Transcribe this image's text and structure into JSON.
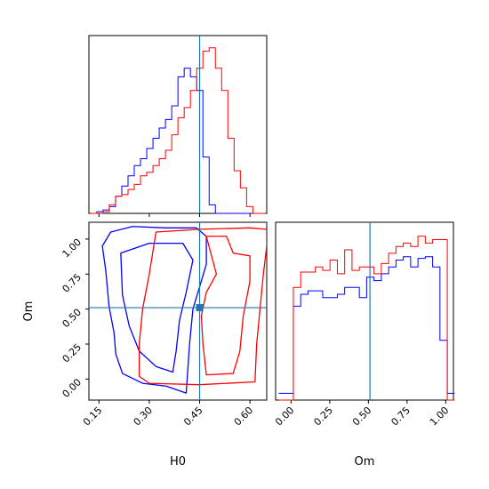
{
  "chart_data": {
    "type": "corner",
    "colors": {
      "chain_a": "#0000ff",
      "chain_b": "#ff0000",
      "truth": "#1f77b4",
      "frame": "#000000"
    },
    "truths": {
      "H0": 0.45,
      "Om": 0.51
    },
    "panels": {
      "hist_H0": {
        "type": "histogram",
        "xlim": [
          0.12,
          0.65
        ],
        "bins": {
          "start": 0.125,
          "width": 0.0186,
          "count": 28
        },
        "series": [
          {
            "color": "#0000ff",
            "counts": [
              0,
              1,
              2,
              4,
              10,
              16,
              22,
              28,
              32,
              38,
              44,
              50,
              55,
              63,
              80,
              85,
              80,
              72,
              33,
              5,
              0,
              0,
              0,
              0,
              0,
              0,
              0,
              0
            ]
          },
          {
            "color": "#ff0000",
            "counts": [
              0,
              0,
              1,
              5,
              10,
              11,
              14,
              17,
              22,
              24,
              28,
              32,
              37,
              46,
              56,
              62,
              72,
              85,
              95,
              97,
              85,
              72,
              44,
              25,
              15,
              4,
              0,
              0
            ]
          }
        ],
        "ymax": 100
      },
      "hist_Om": {
        "type": "histogram",
        "xlim": [
          -0.1,
          1.05
        ],
        "ticks": [
          "0.00",
          "0.25",
          "0.50",
          "0.75",
          "1.00"
        ],
        "xlabel": "Om",
        "bins": {
          "start": -0.08,
          "width": 0.0474,
          "count": 24
        },
        "series": [
          {
            "color": "#0000ff",
            "counts": [
              4,
              4,
              55,
              62,
              64,
              64,
              60,
              60,
              62,
              66,
              66,
              60,
              72,
              70,
              74,
              78,
              82,
              84,
              78,
              83,
              84,
              78,
              35,
              4
            ]
          },
          {
            "color": "#ff0000",
            "counts": [
              0,
              0,
              66,
              75,
              75,
              78,
              76,
              82,
              74,
              88,
              76,
              78,
              78,
              74,
              80,
              86,
              90,
              92,
              90,
              96,
              92,
              94,
              94,
              0
            ]
          }
        ],
        "ymax": 100
      },
      "contour": {
        "type": "contour",
        "xlim": [
          0.12,
          0.65
        ],
        "ylim": [
          -0.15,
          1.12
        ],
        "xticks": [
          "0.15",
          "0.30",
          "0.45",
          "0.60"
        ],
        "yticks": [
          "0.00",
          "0.25",
          "0.50",
          "0.75",
          "1.00"
        ],
        "xlabel": "H0",
        "ylabel": "Om",
        "truth_marker": [
          0.45,
          0.51
        ],
        "contours": [
          {
            "color": "#0000ff",
            "level": "outer",
            "points": [
              [
                0.185,
                1.05
              ],
              [
                0.25,
                1.09
              ],
              [
                0.35,
                1.08
              ],
              [
                0.44,
                1.08
              ],
              [
                0.47,
                1.02
              ],
              [
                0.47,
                0.82
              ],
              [
                0.455,
                0.7
              ],
              [
                0.43,
                0.5
              ],
              [
                0.42,
                0.25
              ],
              [
                0.41,
                -0.1
              ],
              [
                0.35,
                -0.05
              ],
              [
                0.28,
                -0.03
              ],
              [
                0.22,
                0.04
              ],
              [
                0.2,
                0.18
              ],
              [
                0.195,
                0.33
              ],
              [
                0.18,
                0.52
              ],
              [
                0.17,
                0.78
              ],
              [
                0.16,
                0.95
              ],
              [
                0.185,
                1.05
              ]
            ]
          },
          {
            "color": "#0000ff",
            "level": "inner",
            "points": [
              [
                0.215,
                0.9
              ],
              [
                0.3,
                0.97
              ],
              [
                0.4,
                0.97
              ],
              [
                0.43,
                0.85
              ],
              [
                0.41,
                0.62
              ],
              [
                0.39,
                0.42
              ],
              [
                0.38,
                0.2
              ],
              [
                0.37,
                0.05
              ],
              [
                0.32,
                0.09
              ],
              [
                0.27,
                0.2
              ],
              [
                0.24,
                0.38
              ],
              [
                0.22,
                0.6
              ],
              [
                0.215,
                0.9
              ]
            ]
          },
          {
            "color": "#ff0000",
            "level": "outer",
            "points": [
              [
                0.32,
                1.05
              ],
              [
                0.45,
                1.07
              ],
              [
                0.6,
                1.08
              ],
              [
                0.65,
                1.07
              ],
              [
                0.65,
                0.95
              ],
              [
                0.64,
                0.75
              ],
              [
                0.63,
                0.5
              ],
              [
                0.62,
                0.25
              ],
              [
                0.615,
                -0.02
              ],
              [
                0.45,
                -0.04
              ],
              [
                0.3,
                -0.03
              ],
              [
                0.27,
                0.02
              ],
              [
                0.27,
                0.25
              ],
              [
                0.28,
                0.5
              ],
              [
                0.3,
                0.75
              ],
              [
                0.32,
                1.05
              ]
            ]
          },
          {
            "color": "#ff0000",
            "level": "inner",
            "points": [
              [
                0.47,
                1.02
              ],
              [
                0.53,
                1.02
              ],
              [
                0.55,
                0.9
              ],
              [
                0.6,
                0.88
              ],
              [
                0.6,
                0.7
              ],
              [
                0.58,
                0.45
              ],
              [
                0.57,
                0.2
              ],
              [
                0.55,
                0.04
              ],
              [
                0.47,
                0.03
              ],
              [
                0.46,
                0.25
              ],
              [
                0.455,
                0.45
              ],
              [
                0.47,
                0.62
              ],
              [
                0.5,
                0.75
              ],
              [
                0.47,
                1.02
              ]
            ]
          }
        ]
      }
    }
  }
}
